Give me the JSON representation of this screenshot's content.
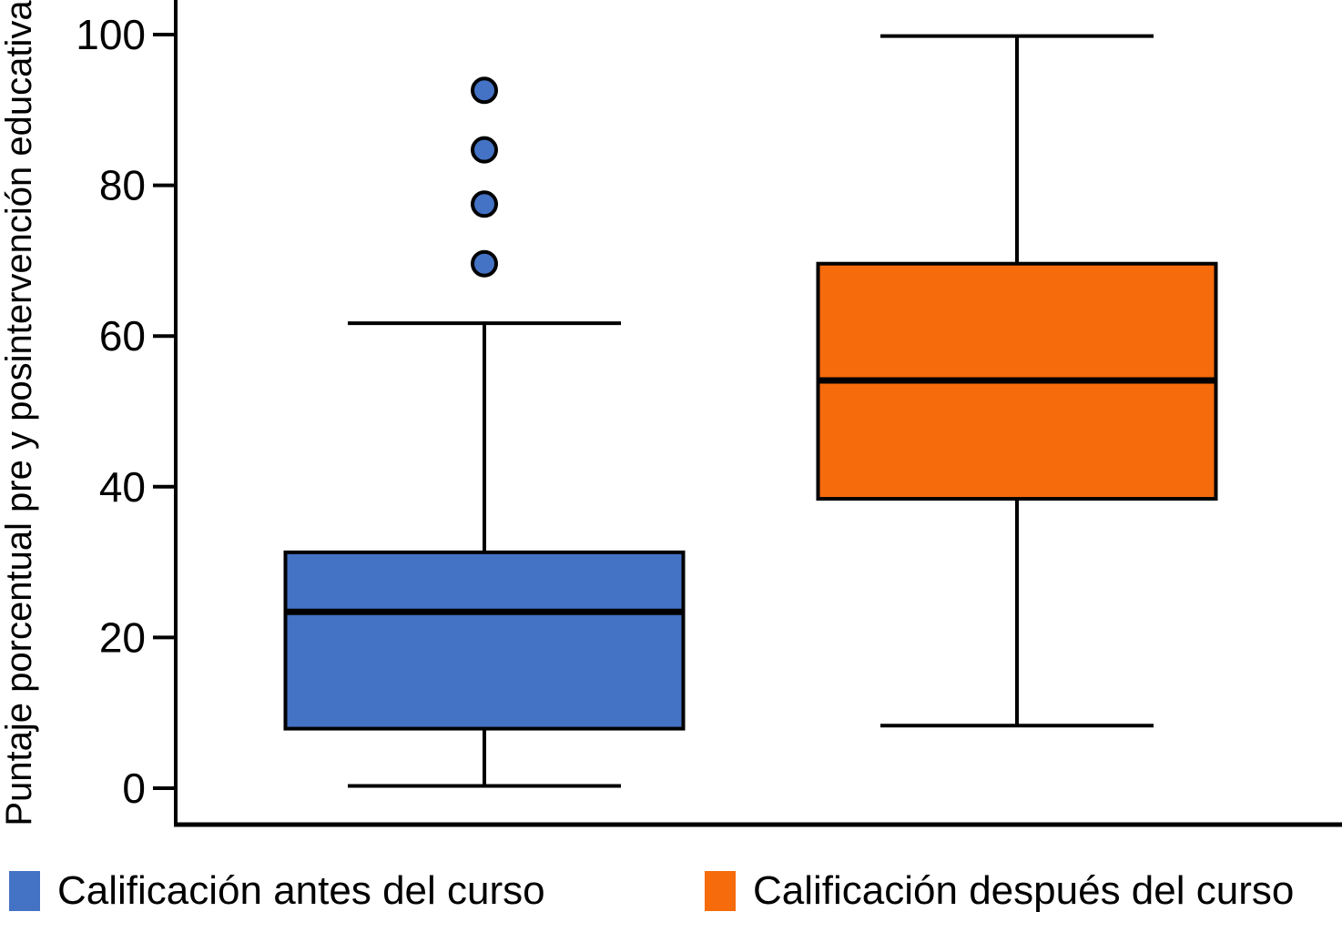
{
  "chart_data": {
    "type": "boxplot",
    "title": "",
    "xlabel": "",
    "ylabel": "Puntaje porcentual pre y posintervención educativa",
    "ylim": [
      0,
      100
    ],
    "yticks": [
      0,
      20,
      40,
      60,
      80,
      100
    ],
    "grid": false,
    "legend_position": "bottom",
    "axis_color": "#000000",
    "background_color": "#ffffff",
    "series": [
      {
        "name": "Calificación antes del curso",
        "color": "#4472C4",
        "whisker_low": 0.3,
        "q1": 7.9,
        "median": 23.4,
        "q3": 31.3,
        "whisker_high": 61.7,
        "outliers": [
          69.6,
          77.5,
          84.7,
          92.6
        ]
      },
      {
        "name": "Calificación después del curso",
        "color": "#F66B0C",
        "whisker_low": 8.3,
        "q1": 38.4,
        "median": 54.1,
        "q3": 69.6,
        "whisker_high": 99.8,
        "outliers": []
      }
    ]
  }
}
